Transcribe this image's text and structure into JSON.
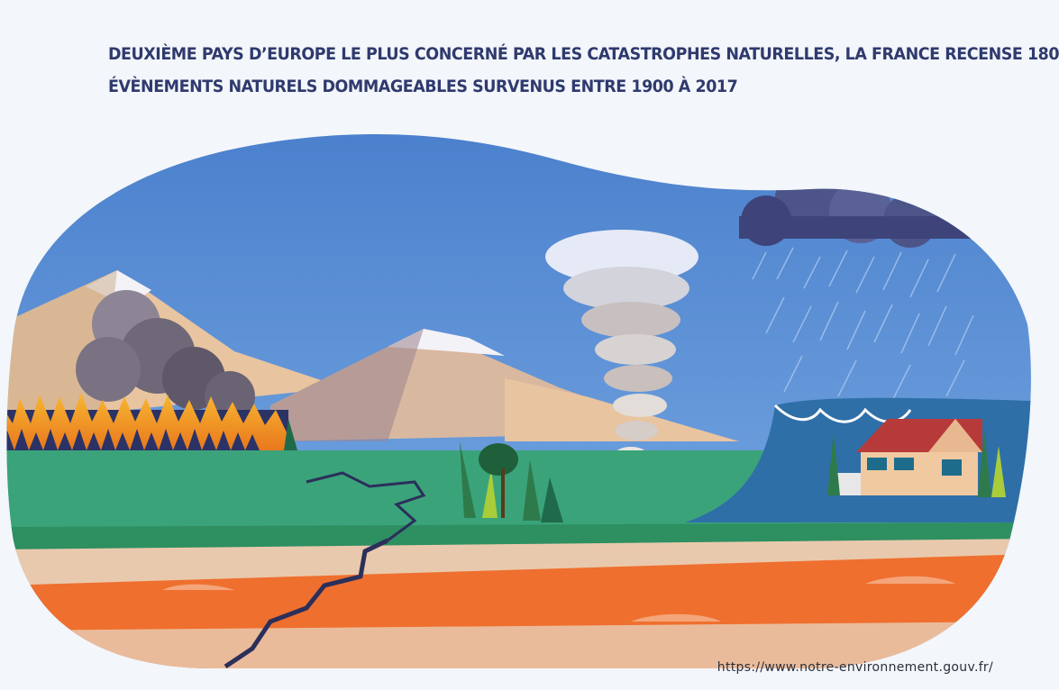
{
  "headline": {
    "line1": "Deuxième pays d’Europe le plus concerné par les catastrophes naturelles, la France recense 180",
    "line2": "évènements naturels dommageables survenus entre 1900 à 2017"
  },
  "source": "https://www.notre-environnement.gouv.fr/",
  "colors": {
    "background": "#f3f6fa",
    "headline": "#2f3a6e",
    "sky": "#5b8fd6",
    "grass": "#3aa37a",
    "lava": "#ef6f2e",
    "sand": "#e9c9ad",
    "fire": "#f5a623",
    "house_roof": "#c0392b"
  },
  "illustration": {
    "elements": [
      "mountains",
      "wildfire",
      "smoke",
      "tornado",
      "rain-cloud",
      "flood-wave",
      "house",
      "earthquake-crack",
      "trees"
    ]
  }
}
